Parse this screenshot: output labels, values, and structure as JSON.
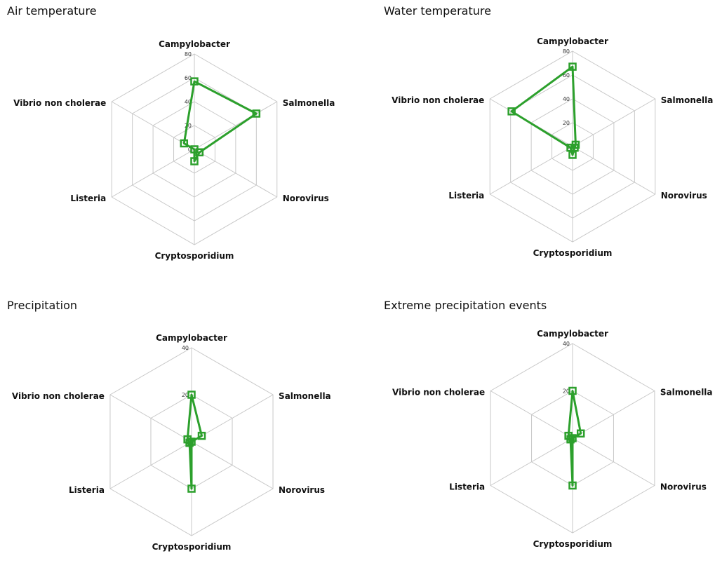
{
  "series_color": "#2ca02c",
  "chart_data": [
    {
      "type": "radar",
      "title": "Air temperature",
      "categories": [
        "Campylobacter",
        "Salmonella",
        "Norovirus",
        "Cryptosporidium",
        "Listeria",
        "Vibrio non cholerae"
      ],
      "ticks": [
        0,
        20,
        40,
        60,
        80
      ],
      "rmax": 80,
      "values": [
        57,
        60,
        5,
        10,
        0,
        10
      ],
      "grid": true
    },
    {
      "type": "radar",
      "title": "Water temperature",
      "categories": [
        "Campylobacter",
        "Salmonella",
        "Norovirus",
        "Cryptosporidium",
        "Listeria",
        "Vibrio non cholerae"
      ],
      "ticks": [
        0,
        20,
        40,
        60,
        80
      ],
      "rmax": 80,
      "values": [
        67,
        3,
        2,
        7,
        2,
        59
      ],
      "grid": true
    },
    {
      "type": "radar",
      "title": "Precipitation",
      "categories": [
        "Campylobacter",
        "Salmonella",
        "Norovirus",
        "Cryptosporidium",
        "Listeria",
        "Vibrio non cholerae"
      ],
      "ticks": [
        0,
        20,
        40
      ],
      "rmax": 40,
      "values": [
        20,
        5,
        0,
        20,
        1,
        2
      ],
      "grid": true
    },
    {
      "type": "radar",
      "title": "Extreme precipitation events",
      "categories": [
        "Campylobacter",
        "Salmonella",
        "Norovirus",
        "Cryptosporidium",
        "Listeria",
        "Vibrio non cholerae"
      ],
      "ticks": [
        0,
        20,
        40
      ],
      "rmax": 40,
      "values": [
        20,
        4,
        0,
        20,
        1,
        2
      ],
      "grid": true
    }
  ]
}
